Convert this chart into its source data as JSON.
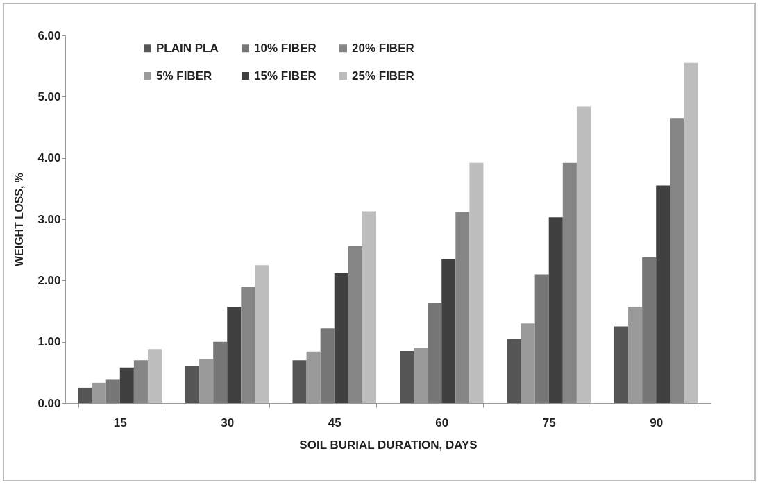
{
  "chart_data": {
    "type": "bar",
    "xlabel": "SOIL BURIAL DURATION, DAYS",
    "ylabel": "WEIGHT LOSS, %",
    "categories": [
      "15",
      "30",
      "45",
      "60",
      "75",
      "90"
    ],
    "series": [
      {
        "name": "PLAIN PLA",
        "color": "#555555",
        "values": [
          0.25,
          0.6,
          0.7,
          0.85,
          1.05,
          1.25
        ]
      },
      {
        "name": "5% FIBER",
        "color": "#9a9a9a",
        "values": [
          0.33,
          0.72,
          0.84,
          0.9,
          1.3,
          1.57
        ]
      },
      {
        "name": "10% FIBER",
        "color": "#777777",
        "values": [
          0.38,
          1.0,
          1.22,
          1.63,
          2.1,
          2.38
        ]
      },
      {
        "name": "15% FIBER",
        "color": "#404040",
        "values": [
          0.58,
          1.57,
          2.12,
          2.35,
          3.03,
          3.55
        ]
      },
      {
        "name": "20% FIBER",
        "color": "#858585",
        "values": [
          0.7,
          1.9,
          2.56,
          3.12,
          3.92,
          4.65
        ]
      },
      {
        "name": "25% FIBER",
        "color": "#bdbdbd",
        "values": [
          0.88,
          2.25,
          3.13,
          3.92,
          4.84,
          5.55
        ]
      }
    ],
    "ylim": [
      0,
      6
    ],
    "yticks": [
      {
        "value": 0,
        "label": "0.00"
      },
      {
        "value": 1,
        "label": "1.00"
      },
      {
        "value": 2,
        "label": "2.00"
      },
      {
        "value": 3,
        "label": "3.00"
      },
      {
        "value": 4,
        "label": "4.00"
      },
      {
        "value": 5,
        "label": "5.00"
      },
      {
        "value": 6,
        "label": "6.00"
      }
    ],
    "grid": false,
    "legend": "top left"
  }
}
